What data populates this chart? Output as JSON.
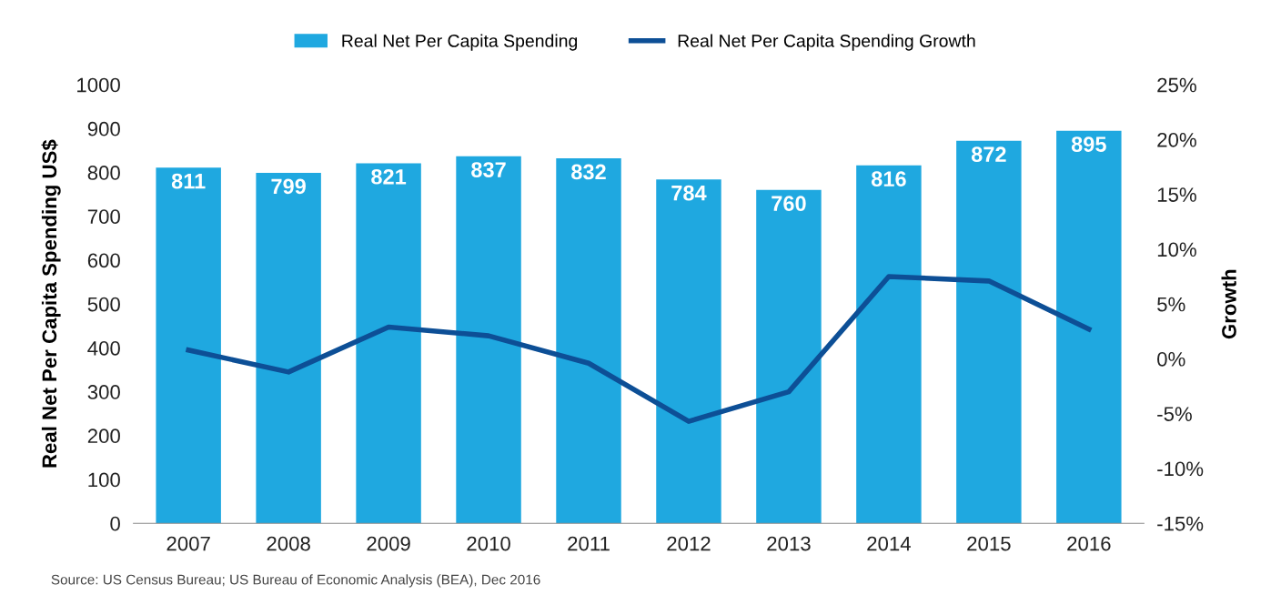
{
  "chart_data": {
    "type": "bar",
    "categories": [
      "2007",
      "2008",
      "2009",
      "2010",
      "2011",
      "2012",
      "2013",
      "2014",
      "2015",
      "2016"
    ],
    "ylabel": "Real Net Per Capita Spending US$",
    "y2label": "Growth",
    "series": [
      {
        "name": "Real Net Per Capita Spending",
        "color": "#1fa8e0",
        "values": [
          811,
          799,
          821,
          837,
          832,
          784,
          760,
          816,
          872,
          895
        ],
        "data_labels": true
      },
      {
        "name": "Real Net Per Capita Spending Growth",
        "type": "line",
        "axis": "y2",
        "color": "#0d4f96",
        "values": [
          0.8,
          -1.2,
          2.9,
          2.1,
          -0.4,
          -5.7,
          -3.0,
          7.5,
          7.1,
          2.7
        ]
      }
    ],
    "ylim": [
      0,
      1000
    ],
    "yticks": [
      0,
      100,
      200,
      300,
      400,
      500,
      600,
      700,
      800,
      900,
      1000
    ],
    "y2lim": [
      -15,
      25
    ],
    "y2ticks": [
      {
        "value": -15,
        "label": "-15%"
      },
      {
        "value": -10,
        "label": "-10%"
      },
      {
        "value": -5,
        "label": "-5%"
      },
      {
        "value": 0,
        "label": "0%"
      },
      {
        "value": 5,
        "label": "5%"
      },
      {
        "value": 10,
        "label": "10%"
      },
      {
        "value": 15,
        "label": "15%"
      },
      {
        "value": 20,
        "label": "20%"
      },
      {
        "value": 25,
        "label": "25%"
      }
    ],
    "grid": false,
    "legend": "top",
    "marker": "none",
    "line_style": "solid",
    "annotations": [
      "Source: US Census Bureau; US Bureau of Economic Analysis (BEA), Dec 2016"
    ]
  }
}
